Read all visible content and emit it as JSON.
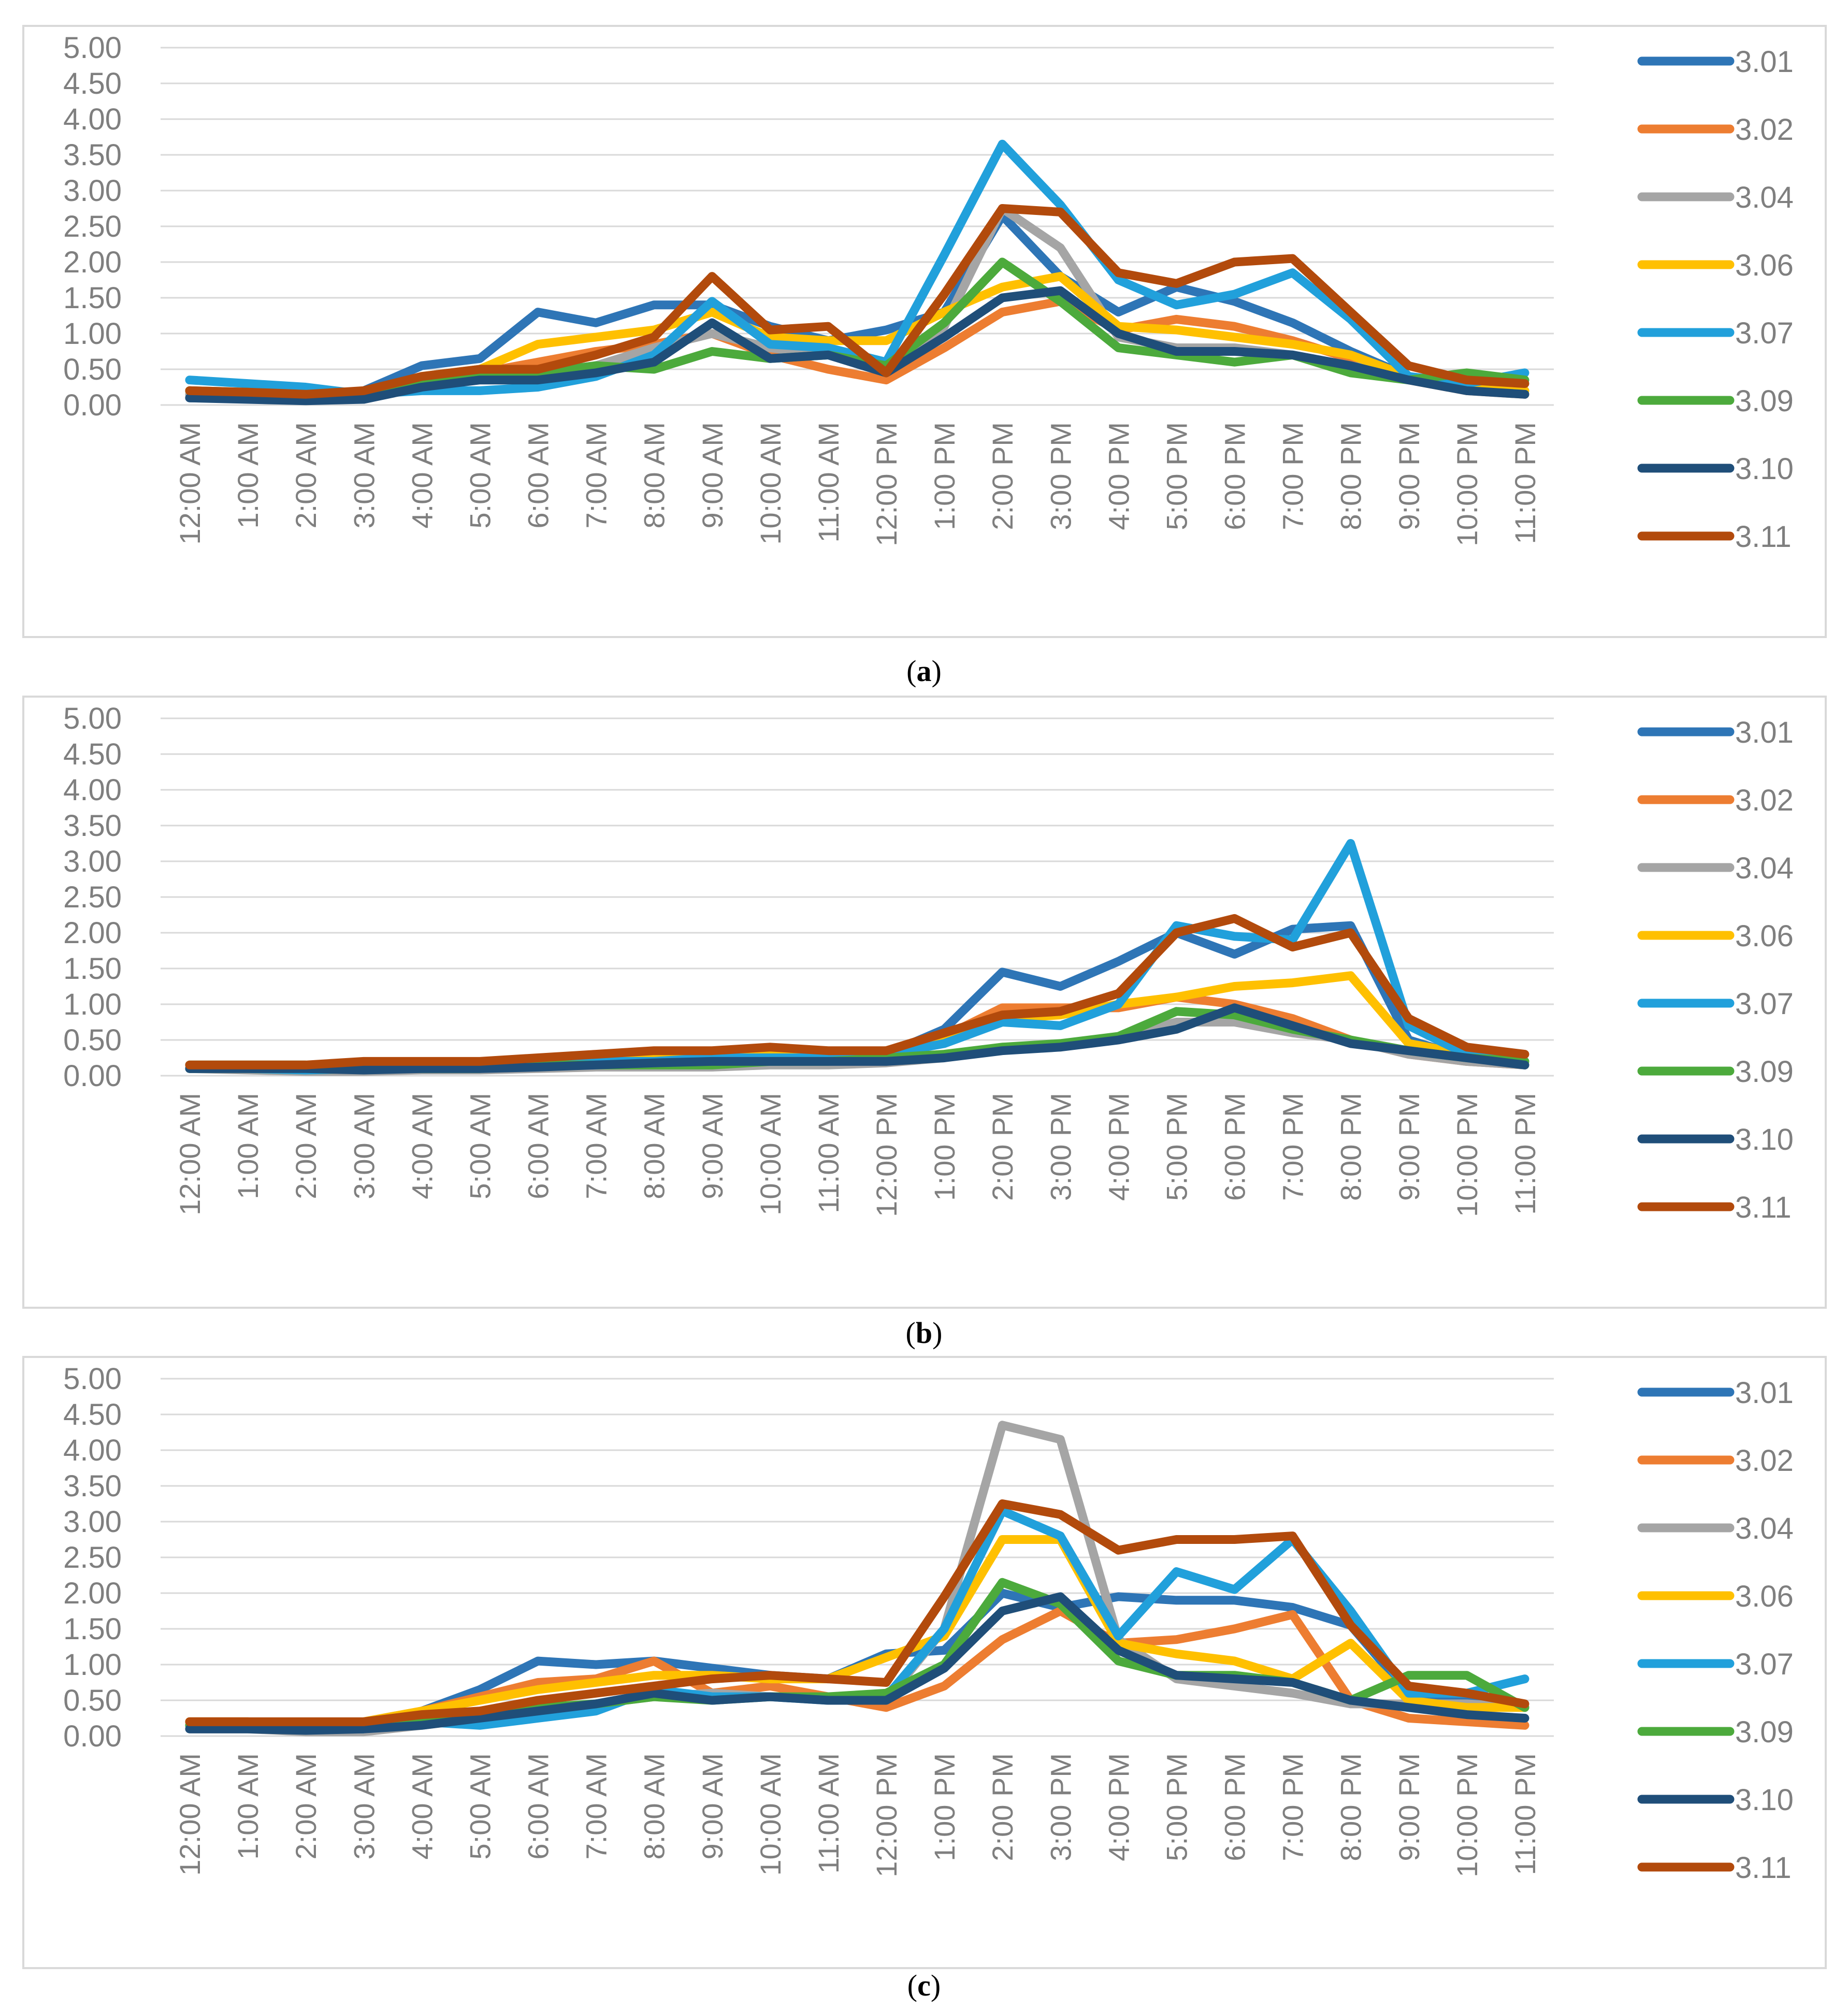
{
  "figure": {
    "captions": [
      "a",
      "b",
      "c"
    ]
  },
  "colors": {
    "3.01": "#2E75B6",
    "3.02": "#ED7D31",
    "3.04": "#A5A5A5",
    "3.06": "#FFC000",
    "3.07": "#21A0DB",
    "3.09": "#4CAA3C",
    "3.10": "#1F4E79",
    "3.11": "#B24A0C",
    "axis_text": "#7F7F7F",
    "grid": "#D9D9D9",
    "frame": "#D9D9D9"
  },
  "chart_data": [
    {
      "type": "line",
      "panel": "a",
      "title": "",
      "xlabel": "",
      "ylabel": "",
      "ylim": [
        0,
        5
      ],
      "yticks": [
        "0.00",
        "0.50",
        "1.00",
        "1.50",
        "2.00",
        "2.50",
        "3.00",
        "3.50",
        "4.00",
        "4.50",
        "5.00"
      ],
      "grid": true,
      "legend_position": "right",
      "categories": [
        "12:00 AM",
        "1:00 AM",
        "2:00 AM",
        "3:00 AM",
        "4:00 AM",
        "5:00 AM",
        "6:00 AM",
        "7:00 AM",
        "8:00 AM",
        "9:00 AM",
        "10:00 AM",
        "11:00 AM",
        "12:00 PM",
        "1:00 PM",
        "2:00 PM",
        "3:00 PM",
        "4:00 PM",
        "5:00 PM",
        "6:00 PM",
        "7:00 PM",
        "8:00 PM",
        "9:00 PM",
        "10:00 PM",
        "11:00 PM"
      ],
      "series": [
        {
          "name": "3.01",
          "values": [
            0.1,
            0.1,
            0.08,
            0.2,
            0.55,
            0.65,
            1.3,
            1.15,
            1.4,
            1.4,
            1.1,
            0.9,
            1.05,
            1.3,
            2.65,
            1.8,
            1.3,
            1.65,
            1.45,
            1.15,
            0.75,
            0.4,
            0.25,
            0.2
          ]
        },
        {
          "name": "3.02",
          "values": [
            0.2,
            0.15,
            0.1,
            0.15,
            0.35,
            0.45,
            0.6,
            0.75,
            0.85,
            1.0,
            0.7,
            0.5,
            0.35,
            0.8,
            1.3,
            1.45,
            1.05,
            1.2,
            1.1,
            0.9,
            0.65,
            0.35,
            0.2,
            0.15
          ]
        },
        {
          "name": "3.04",
          "values": [
            0.15,
            0.1,
            0.08,
            0.1,
            0.3,
            0.4,
            0.45,
            0.55,
            0.8,
            1.0,
            0.8,
            0.7,
            0.55,
            1.1,
            2.75,
            2.2,
            0.95,
            0.8,
            0.8,
            0.7,
            0.55,
            0.4,
            0.25,
            0.15
          ]
        },
        {
          "name": "3.06",
          "values": [
            0.2,
            0.15,
            0.1,
            0.15,
            0.4,
            0.5,
            0.85,
            0.95,
            1.05,
            1.3,
            0.95,
            0.9,
            0.9,
            1.3,
            1.65,
            1.8,
            1.1,
            1.05,
            0.95,
            0.85,
            0.7,
            0.4,
            0.25,
            0.2
          ]
        },
        {
          "name": "3.07",
          "values": [
            0.35,
            0.3,
            0.25,
            0.15,
            0.2,
            0.2,
            0.25,
            0.4,
            0.7,
            1.45,
            0.85,
            0.8,
            0.6,
            2.1,
            3.65,
            2.8,
            1.75,
            1.4,
            1.55,
            1.85,
            1.2,
            0.4,
            0.3,
            0.45
          ]
        },
        {
          "name": "3.09",
          "values": [
            0.2,
            0.18,
            0.12,
            0.15,
            0.3,
            0.4,
            0.45,
            0.55,
            0.5,
            0.75,
            0.65,
            0.7,
            0.55,
            1.15,
            2.0,
            1.45,
            0.8,
            0.7,
            0.6,
            0.7,
            0.45,
            0.35,
            0.45,
            0.35
          ]
        },
        {
          "name": "3.10",
          "values": [
            0.1,
            0.08,
            0.06,
            0.08,
            0.25,
            0.35,
            0.35,
            0.45,
            0.6,
            1.15,
            0.65,
            0.7,
            0.45,
            0.95,
            1.5,
            1.6,
            1.0,
            0.75,
            0.75,
            0.7,
            0.55,
            0.35,
            0.2,
            0.15
          ]
        },
        {
          "name": "3.11",
          "values": [
            0.2,
            0.18,
            0.15,
            0.2,
            0.4,
            0.5,
            0.5,
            0.7,
            0.95,
            1.8,
            1.05,
            1.1,
            0.45,
            1.55,
            2.75,
            2.7,
            1.85,
            1.7,
            2.0,
            2.05,
            1.3,
            0.55,
            0.35,
            0.3
          ]
        }
      ]
    },
    {
      "type": "line",
      "panel": "b",
      "title": "",
      "xlabel": "",
      "ylabel": "",
      "ylim": [
        0,
        5
      ],
      "yticks": [
        "0.00",
        "0.50",
        "1.00",
        "1.50",
        "2.00",
        "2.50",
        "3.00",
        "3.50",
        "4.00",
        "4.50",
        "5.00"
      ],
      "grid": true,
      "legend_position": "right",
      "categories": [
        "12:00 AM",
        "1:00 AM",
        "2:00 AM",
        "3:00 AM",
        "4:00 AM",
        "5:00 AM",
        "6:00 AM",
        "7:00 AM",
        "8:00 AM",
        "9:00 AM",
        "10:00 AM",
        "11:00 AM",
        "12:00 PM",
        "1:00 PM",
        "2:00 PM",
        "3:00 PM",
        "4:00 PM",
        "5:00 PM",
        "6:00 PM",
        "7:00 PM",
        "8:00 PM",
        "9:00 PM",
        "10:00 PM",
        "11:00 PM"
      ],
      "series": [
        {
          "name": "3.01",
          "values": [
            0.1,
            0.1,
            0.08,
            0.1,
            0.1,
            0.1,
            0.15,
            0.2,
            0.2,
            0.2,
            0.25,
            0.25,
            0.3,
            0.65,
            1.45,
            1.25,
            1.6,
            2.0,
            1.7,
            2.05,
            2.1,
            0.5,
            0.25,
            0.15
          ]
        },
        {
          "name": "3.02",
          "values": [
            0.1,
            0.1,
            0.08,
            0.1,
            0.1,
            0.1,
            0.15,
            0.2,
            0.25,
            0.25,
            0.3,
            0.3,
            0.35,
            0.55,
            0.95,
            0.95,
            0.95,
            1.1,
            1.0,
            0.8,
            0.5,
            0.3,
            0.2,
            0.15
          ]
        },
        {
          "name": "3.04",
          "values": [
            0.1,
            0.08,
            0.06,
            0.06,
            0.08,
            0.08,
            0.1,
            0.12,
            0.12,
            0.12,
            0.15,
            0.15,
            0.18,
            0.25,
            0.4,
            0.4,
            0.55,
            0.75,
            0.75,
            0.6,
            0.5,
            0.3,
            0.2,
            0.15
          ]
        },
        {
          "name": "3.06",
          "values": [
            0.1,
            0.1,
            0.08,
            0.1,
            0.1,
            0.1,
            0.15,
            0.2,
            0.25,
            0.25,
            0.3,
            0.3,
            0.35,
            0.55,
            0.8,
            0.85,
            1.0,
            1.1,
            1.25,
            1.3,
            1.4,
            0.45,
            0.3,
            0.2
          ]
        },
        {
          "name": "3.07",
          "values": [
            0.1,
            0.1,
            0.08,
            0.1,
            0.1,
            0.1,
            0.15,
            0.2,
            0.2,
            0.25,
            0.25,
            0.25,
            0.3,
            0.45,
            0.75,
            0.7,
            1.0,
            2.1,
            1.95,
            1.9,
            3.25,
            0.7,
            0.3,
            0.2
          ]
        },
        {
          "name": "3.09",
          "values": [
            0.15,
            0.15,
            0.15,
            0.1,
            0.1,
            0.1,
            0.15,
            0.15,
            0.15,
            0.15,
            0.2,
            0.2,
            0.25,
            0.3,
            0.4,
            0.45,
            0.55,
            0.9,
            0.85,
            0.65,
            0.5,
            0.35,
            0.25,
            0.2
          ]
        },
        {
          "name": "3.10",
          "values": [
            0.1,
            0.1,
            0.1,
            0.08,
            0.1,
            0.1,
            0.12,
            0.15,
            0.18,
            0.2,
            0.2,
            0.2,
            0.2,
            0.25,
            0.35,
            0.4,
            0.5,
            0.65,
            0.95,
            0.7,
            0.45,
            0.35,
            0.25,
            0.15
          ]
        },
        {
          "name": "3.11",
          "values": [
            0.15,
            0.15,
            0.15,
            0.2,
            0.2,
            0.2,
            0.25,
            0.3,
            0.35,
            0.35,
            0.4,
            0.35,
            0.35,
            0.6,
            0.85,
            0.9,
            1.15,
            2.0,
            2.2,
            1.8,
            2.0,
            0.8,
            0.4,
            0.3
          ]
        }
      ]
    },
    {
      "type": "line",
      "panel": "c",
      "title": "",
      "xlabel": "",
      "ylabel": "",
      "ylim": [
        0,
        5
      ],
      "yticks": [
        "0.00",
        "0.50",
        "1.00",
        "1.50",
        "2.00",
        "2.50",
        "3.00",
        "3.50",
        "4.00",
        "4.50",
        "5.00"
      ],
      "grid": true,
      "legend_position": "right",
      "categories": [
        "12:00 AM",
        "1:00 AM",
        "2:00 AM",
        "3:00 AM",
        "4:00 AM",
        "5:00 AM",
        "6:00 AM",
        "7:00 AM",
        "8:00 AM",
        "9:00 AM",
        "10:00 AM",
        "11:00 AM",
        "12:00 PM",
        "1:00 PM",
        "2:00 PM",
        "3:00 PM",
        "4:00 PM",
        "5:00 PM",
        "6:00 PM",
        "7:00 PM",
        "8:00 PM",
        "9:00 PM",
        "10:00 PM",
        "11:00 PM"
      ],
      "series": [
        {
          "name": "3.01",
          "values": [
            0.15,
            0.15,
            0.12,
            0.15,
            0.35,
            0.65,
            1.05,
            1.0,
            1.05,
            0.95,
            0.85,
            0.8,
            1.15,
            1.2,
            2.0,
            1.8,
            1.95,
            1.9,
            1.9,
            1.8,
            1.55,
            0.6,
            0.5,
            0.4
          ]
        },
        {
          "name": "3.02",
          "values": [
            0.2,
            0.2,
            0.15,
            0.2,
            0.35,
            0.55,
            0.75,
            0.8,
            1.05,
            0.6,
            0.7,
            0.55,
            0.4,
            0.7,
            1.35,
            1.75,
            1.3,
            1.35,
            1.5,
            1.7,
            0.5,
            0.25,
            0.2,
            0.15
          ]
        },
        {
          "name": "3.04",
          "values": [
            0.1,
            0.1,
            0.06,
            0.06,
            0.15,
            0.25,
            0.35,
            0.45,
            0.55,
            0.6,
            0.55,
            0.55,
            0.5,
            1.5,
            4.35,
            4.15,
            1.35,
            0.8,
            0.7,
            0.6,
            0.45,
            0.45,
            0.45,
            0.4
          ]
        },
        {
          "name": "3.06",
          "values": [
            0.2,
            0.2,
            0.15,
            0.2,
            0.35,
            0.5,
            0.65,
            0.75,
            0.85,
            0.85,
            0.8,
            0.8,
            1.1,
            1.4,
            2.75,
            2.75,
            1.3,
            1.15,
            1.05,
            0.8,
            1.3,
            0.5,
            0.4,
            0.4
          ]
        },
        {
          "name": "3.07",
          "values": [
            0.15,
            0.15,
            0.1,
            0.1,
            0.2,
            0.15,
            0.25,
            0.35,
            0.65,
            0.55,
            0.55,
            0.5,
            0.55,
            1.5,
            3.15,
            2.8,
            1.4,
            2.3,
            2.05,
            2.75,
            1.75,
            0.6,
            0.6,
            0.8
          ]
        },
        {
          "name": "3.09",
          "values": [
            0.15,
            0.15,
            0.15,
            0.15,
            0.2,
            0.3,
            0.4,
            0.45,
            0.55,
            0.5,
            0.55,
            0.55,
            0.6,
            1.0,
            2.15,
            1.85,
            1.05,
            0.85,
            0.85,
            0.75,
            0.5,
            0.85,
            0.85,
            0.4
          ]
        },
        {
          "name": "3.10",
          "values": [
            0.1,
            0.1,
            0.08,
            0.1,
            0.15,
            0.25,
            0.35,
            0.45,
            0.6,
            0.5,
            0.55,
            0.5,
            0.5,
            0.95,
            1.75,
            1.95,
            1.2,
            0.85,
            0.8,
            0.75,
            0.5,
            0.4,
            0.3,
            0.25
          ]
        },
        {
          "name": "3.11",
          "values": [
            0.2,
            0.2,
            0.2,
            0.2,
            0.3,
            0.35,
            0.5,
            0.6,
            0.7,
            0.8,
            0.85,
            0.8,
            0.75,
            1.95,
            3.25,
            3.1,
            2.6,
            2.75,
            2.75,
            2.8,
            1.55,
            0.7,
            0.6,
            0.45
          ]
        }
      ]
    }
  ]
}
